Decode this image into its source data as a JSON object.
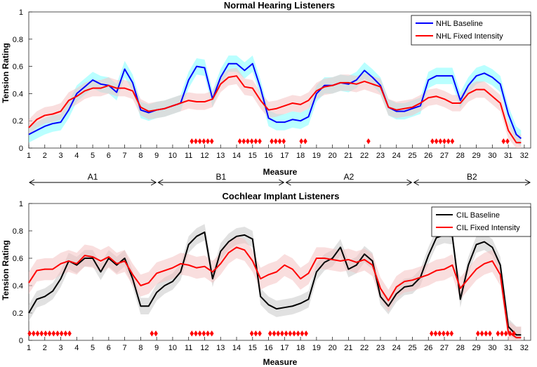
{
  "chart_data": [
    {
      "type": "line",
      "title": "Normal Hearing Listeners",
      "xlabel": "Measure",
      "ylabel": "Tension Rating",
      "xlim": [
        1,
        32.4
      ],
      "ylim": [
        0,
        1
      ],
      "xticks": [
        "1",
        "2",
        "3",
        "4",
        "5",
        "6",
        "7",
        "8",
        "9",
        "10",
        "11",
        "12",
        "13",
        "14",
        "15",
        "16",
        "17",
        "18",
        "19",
        "20",
        "21",
        "22",
        "23",
        "24",
        "25",
        "26",
        "27",
        "28",
        "29",
        "30",
        "31",
        "32"
      ],
      "yticks": [
        "0",
        "0.2",
        "0.4",
        "0.6",
        "0.8",
        "1"
      ],
      "legend_position": "top-right",
      "series": [
        {
          "name": "NHL Baseline",
          "color": "#0000ff",
          "band_color": "#7fffff",
          "x": [
            1,
            1.5,
            2,
            2.5,
            3,
            3.5,
            4,
            4.5,
            5,
            5.5,
            6,
            6.5,
            7,
            7.5,
            8,
            8.5,
            9,
            9.5,
            10,
            10.5,
            11,
            11.5,
            12,
            12.5,
            13,
            13.5,
            14,
            14.5,
            15,
            15.5,
            16,
            16.5,
            17,
            17.5,
            18,
            18.5,
            19,
            19.5,
            20,
            20.5,
            21,
            21.5,
            22,
            22.5,
            23,
            23.5,
            24,
            24.5,
            25,
            25.5,
            26,
            26.5,
            27,
            27.5,
            28,
            28.5,
            29,
            29.5,
            30,
            30.5,
            31,
            31.5,
            31.8
          ],
          "y": [
            0.1,
            0.13,
            0.16,
            0.18,
            0.19,
            0.28,
            0.4,
            0.45,
            0.5,
            0.47,
            0.46,
            0.41,
            0.58,
            0.48,
            0.28,
            0.26,
            0.28,
            0.29,
            0.31,
            0.33,
            0.5,
            0.6,
            0.59,
            0.36,
            0.52,
            0.62,
            0.62,
            0.57,
            0.62,
            0.44,
            0.22,
            0.19,
            0.19,
            0.21,
            0.2,
            0.23,
            0.4,
            0.46,
            0.46,
            0.48,
            0.47,
            0.5,
            0.57,
            0.52,
            0.46,
            0.3,
            0.27,
            0.27,
            0.29,
            0.31,
            0.5,
            0.53,
            0.53,
            0.53,
            0.35,
            0.46,
            0.53,
            0.55,
            0.52,
            0.47,
            0.25,
            0.1,
            0.07
          ],
          "band": 0.06
        },
        {
          "name": "NHL Fixed Intensity",
          "color": "#ff0000",
          "band_color": "#f4c2c2",
          "x": [
            1,
            1.5,
            2,
            2.5,
            3,
            3.5,
            4,
            4.5,
            5,
            5.5,
            6,
            6.5,
            7,
            7.5,
            8,
            8.5,
            9,
            9.5,
            10,
            10.5,
            11,
            11.5,
            12,
            12.5,
            13,
            13.5,
            14,
            14.5,
            15,
            15.5,
            16,
            16.5,
            17,
            17.5,
            18,
            18.5,
            19,
            19.5,
            20,
            20.5,
            21,
            21.5,
            22,
            22.5,
            23,
            23.5,
            24,
            24.5,
            25,
            25.5,
            26,
            26.5,
            27,
            27.5,
            28,
            28.5,
            29,
            29.5,
            30,
            30.5,
            31,
            31.5,
            31.8
          ],
          "y": [
            0.15,
            0.21,
            0.24,
            0.25,
            0.27,
            0.35,
            0.38,
            0.42,
            0.44,
            0.44,
            0.46,
            0.44,
            0.44,
            0.42,
            0.3,
            0.27,
            0.28,
            0.29,
            0.31,
            0.33,
            0.35,
            0.34,
            0.34,
            0.36,
            0.47,
            0.52,
            0.53,
            0.45,
            0.44,
            0.35,
            0.28,
            0.29,
            0.31,
            0.33,
            0.32,
            0.35,
            0.42,
            0.45,
            0.46,
            0.48,
            0.48,
            0.47,
            0.49,
            0.47,
            0.45,
            0.3,
            0.28,
            0.29,
            0.3,
            0.33,
            0.37,
            0.38,
            0.36,
            0.33,
            0.33,
            0.4,
            0.43,
            0.43,
            0.38,
            0.33,
            0.13,
            0.04,
            0.04
          ],
          "band": 0.06
        }
      ],
      "significance_color": "#ff0000",
      "significance_markers": [
        11.2,
        11.45,
        11.7,
        11.95,
        12.2,
        12.45,
        14.2,
        14.45,
        14.7,
        14.95,
        15.2,
        15.45,
        16.2,
        16.45,
        16.7,
        16.95,
        18.05,
        18.3,
        22.25,
        26.25,
        26.5,
        26.75,
        27,
        27.25,
        27.5,
        30.7,
        30.95
      ],
      "sections": [
        {
          "label": "A1",
          "from": 1,
          "to": 9
        },
        {
          "label": "B1",
          "from": 9.05,
          "to": 17
        },
        {
          "label": "A2",
          "from": 17.05,
          "to": 25
        },
        {
          "label": "B2",
          "from": 25.05,
          "to": 32.4
        }
      ]
    },
    {
      "type": "line",
      "title": "Cochlear Implant Listeners",
      "xlabel": "Measure",
      "ylabel": "Tension Rating",
      "xlim": [
        1,
        32.4
      ],
      "ylim": [
        0,
        1
      ],
      "xticks": [
        "1",
        "2",
        "3",
        "4",
        "5",
        "6",
        "7",
        "8",
        "9",
        "10",
        "11",
        "12",
        "13",
        "14",
        "15",
        "16",
        "17",
        "18",
        "19",
        "20",
        "21",
        "22",
        "23",
        "24",
        "25",
        "26",
        "27",
        "28",
        "29",
        "30",
        "31",
        "32"
      ],
      "yticks": [
        "0",
        "0.2",
        "0.4",
        "0.6",
        "0.8",
        "1"
      ],
      "legend_position": "top-right",
      "series": [
        {
          "name": "CIL Baseline",
          "color": "#000000",
          "band_color": "#c8c8c8",
          "x": [
            1,
            1.5,
            2,
            2.5,
            3,
            3.5,
            4,
            4.5,
            5,
            5.5,
            6,
            6.5,
            7,
            7.5,
            8,
            8.5,
            9,
            9.5,
            10,
            10.5,
            11,
            11.5,
            12,
            12.5,
            13,
            13.5,
            14,
            14.5,
            15,
            15.5,
            16,
            16.5,
            17,
            17.5,
            18,
            18.5,
            19,
            19.5,
            20,
            20.5,
            21,
            21.5,
            22,
            22.5,
            23,
            23.5,
            24,
            24.5,
            25,
            25.5,
            26,
            26.5,
            27,
            27.5,
            28,
            28.5,
            29,
            29.5,
            30,
            30.5,
            31,
            31.5,
            31.8
          ],
          "y": [
            0.2,
            0.3,
            0.32,
            0.36,
            0.45,
            0.58,
            0.55,
            0.6,
            0.6,
            0.5,
            0.6,
            0.55,
            0.6,
            0.45,
            0.25,
            0.25,
            0.35,
            0.4,
            0.43,
            0.5,
            0.7,
            0.76,
            0.79,
            0.45,
            0.65,
            0.72,
            0.76,
            0.77,
            0.74,
            0.32,
            0.26,
            0.23,
            0.24,
            0.25,
            0.27,
            0.3,
            0.5,
            0.57,
            0.6,
            0.68,
            0.52,
            0.55,
            0.63,
            0.58,
            0.32,
            0.25,
            0.34,
            0.39,
            0.4,
            0.46,
            0.62,
            0.75,
            0.77,
            0.76,
            0.3,
            0.55,
            0.7,
            0.72,
            0.68,
            0.55,
            0.1,
            0.04,
            0.04
          ],
          "band": 0.06
        },
        {
          "name": "CIL Fixed Intensity",
          "color": "#ff0000",
          "band_color": "#f4c2c2",
          "x": [
            1,
            1.5,
            2,
            2.5,
            3,
            3.5,
            4,
            4.5,
            5,
            5.5,
            6,
            6.5,
            7,
            7.5,
            8,
            8.5,
            9,
            9.5,
            10,
            10.5,
            11,
            11.5,
            12,
            12.5,
            13,
            13.5,
            14,
            14.5,
            15,
            15.5,
            16,
            16.5,
            17,
            17.5,
            18,
            18.5,
            19,
            19.5,
            20,
            20.5,
            21,
            21.5,
            22,
            22.5,
            23,
            23.5,
            24,
            24.5,
            25,
            25.5,
            26,
            26.5,
            27,
            27.5,
            28,
            28.5,
            29,
            29.5,
            30,
            30.5,
            31,
            31.5,
            31.8
          ],
          "y": [
            0.42,
            0.51,
            0.52,
            0.52,
            0.56,
            0.58,
            0.56,
            0.62,
            0.61,
            0.58,
            0.61,
            0.56,
            0.58,
            0.48,
            0.4,
            0.42,
            0.49,
            0.51,
            0.53,
            0.56,
            0.55,
            0.53,
            0.54,
            0.5,
            0.56,
            0.64,
            0.68,
            0.66,
            0.58,
            0.45,
            0.48,
            0.5,
            0.55,
            0.52,
            0.45,
            0.49,
            0.6,
            0.6,
            0.59,
            0.58,
            0.59,
            0.57,
            0.59,
            0.55,
            0.38,
            0.29,
            0.39,
            0.43,
            0.44,
            0.46,
            0.48,
            0.51,
            0.52,
            0.55,
            0.38,
            0.45,
            0.52,
            0.56,
            0.58,
            0.48,
            0.06,
            0.02,
            0.02
          ],
          "band": 0.08
        }
      ],
      "significance_color": "#ff0000",
      "significance_markers": [
        1.05,
        1.3,
        1.55,
        1.8,
        2.05,
        2.3,
        2.55,
        2.8,
        3.05,
        3.3,
        3.55,
        8.7,
        8.95,
        11.2,
        11.45,
        11.7,
        11.95,
        12.2,
        12.45,
        14.95,
        15.2,
        15.45,
        16.1,
        16.35,
        16.6,
        16.85,
        17.1,
        17.35,
        17.6,
        17.85,
        18.1,
        18.35,
        26.2,
        26.45,
        26.7,
        26.95,
        27.2,
        27.45,
        29.1,
        29.35,
        29.6,
        29.85,
        30.35,
        30.6,
        30.85,
        31.1,
        31.35
      ]
    }
  ]
}
